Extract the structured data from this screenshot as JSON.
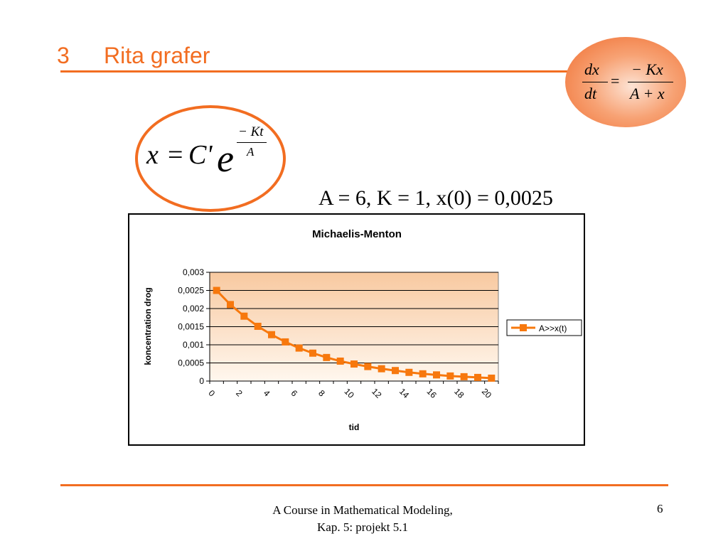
{
  "slide": {
    "section_number": "3",
    "title": "Rita grafer",
    "params": "A = 6, K = 1, x(0) = 0,0025",
    "footer_line1": "A Course in Mathematical Modeling,",
    "footer_line2": "Kap. 5: projekt 5.1",
    "page_number": "6",
    "accent_color": "#f26d21"
  },
  "equations": {
    "ode_lhs_num": "dx",
    "ode_lhs_den": "dt",
    "ode_eq": "=",
    "ode_rhs_num": "− Kx",
    "ode_rhs_den": "A + x",
    "sol_lhs": "x",
    "sol_eq": "=",
    "sol_const": "C'",
    "sol_base": "e",
    "sol_exp_num": "− Kt",
    "sol_exp_den": "A"
  },
  "chart_data": {
    "type": "line",
    "title": "Michaelis-Menton",
    "xlabel": "tid",
    "ylabel": "koncentration drog",
    "x_tick_labels": [
      "0",
      "2",
      "4",
      "6",
      "8",
      "10",
      "12",
      "14",
      "16",
      "18",
      "20"
    ],
    "y_tick_labels": [
      "0",
      "0,0005",
      "0,001",
      "0,0015",
      "0,002",
      "0,0025",
      "0,003"
    ],
    "xlim": [
      0,
      21
    ],
    "ylim": [
      0,
      0.003
    ],
    "grid": true,
    "legend_placement": "right",
    "series": [
      {
        "name": "A>>x(t)",
        "color": "#f7780d",
        "x": [
          0.5,
          1.5,
          2.5,
          3.5,
          4.5,
          5.5,
          6.5,
          7.5,
          8.5,
          9.5,
          10.5,
          11.5,
          12.5,
          13.5,
          14.5,
          15.5,
          16.5,
          17.5,
          18.5,
          19.5,
          20.5
        ],
        "y": [
          0.0025,
          0.00211,
          0.00179,
          0.00151,
          0.00128,
          0.00108,
          0.00091,
          0.00077,
          0.00065,
          0.00055,
          0.00047,
          0.0004,
          0.00034,
          0.00029,
          0.00024,
          0.0002,
          0.00017,
          0.00014,
          0.00012,
          0.0001,
          8e-05
        ]
      }
    ]
  }
}
